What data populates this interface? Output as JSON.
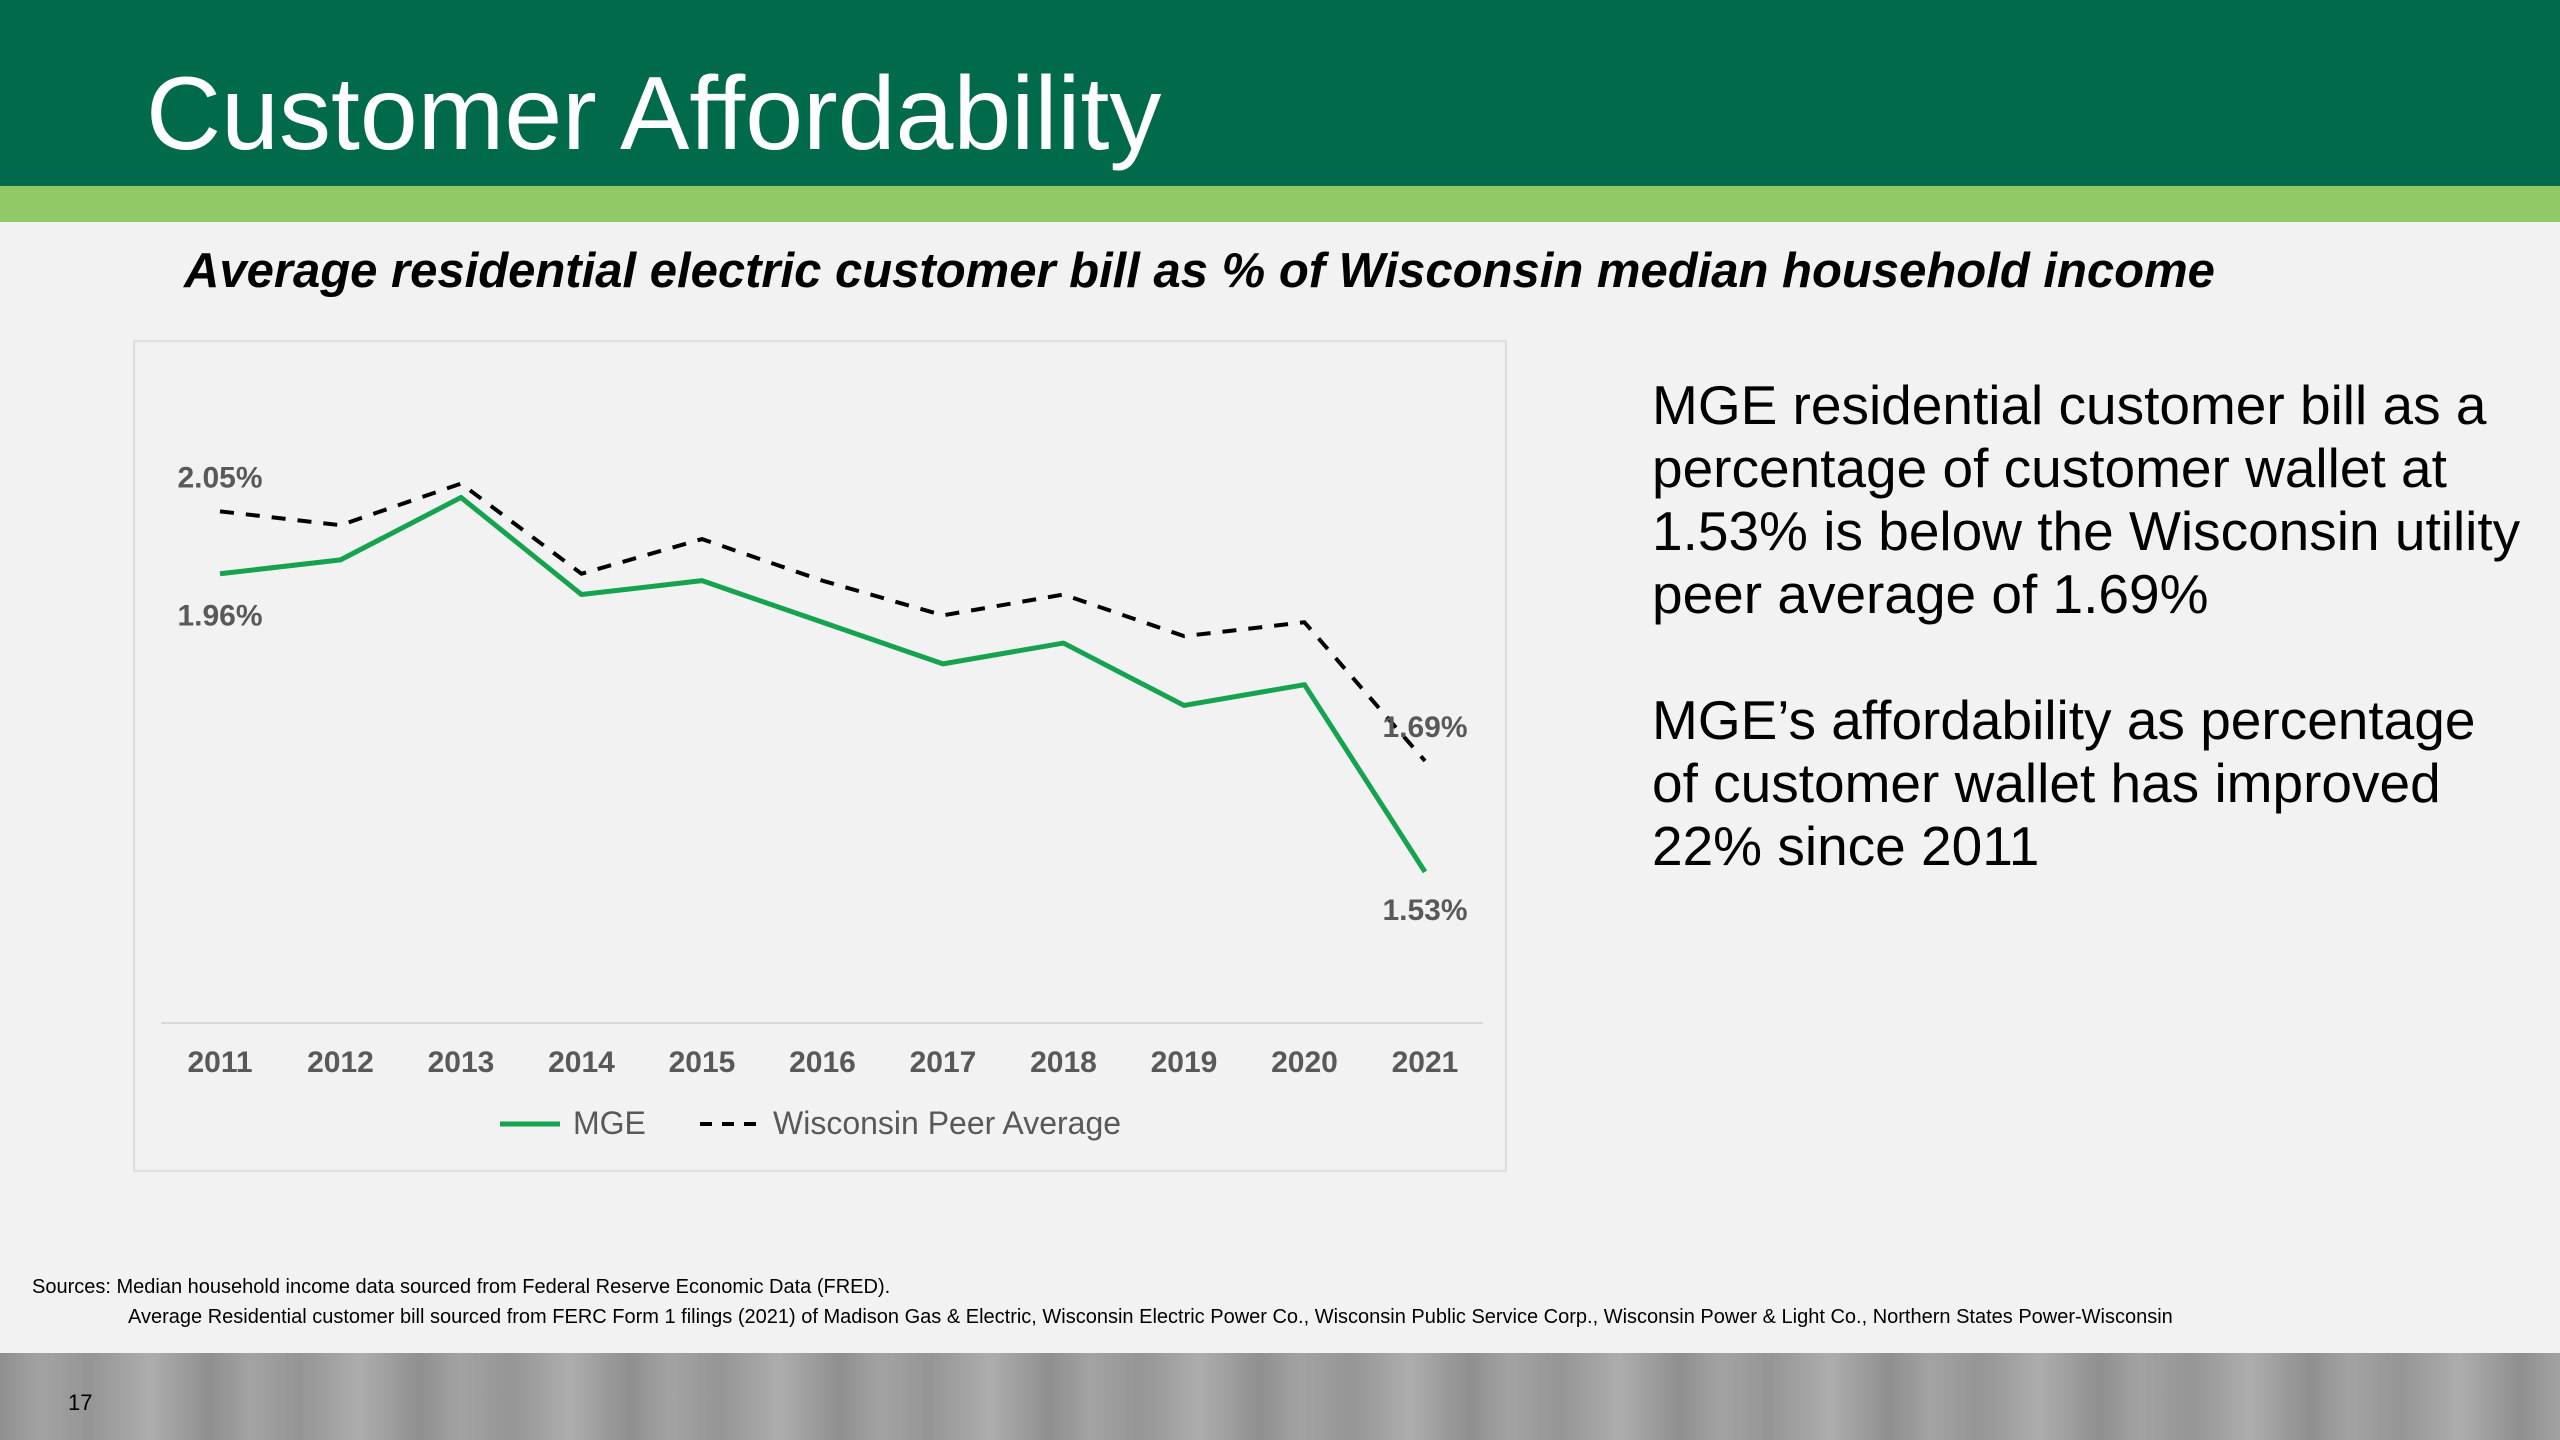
{
  "page": {
    "title": "Customer Affordability",
    "subtitle": "Average residential electric customer bill as % of Wisconsin median household income",
    "side_text": [
      "MGE residential customer bill as a percentage of customer wallet at 1.53% is below the Wisconsin utility peer average of 1.69%",
      "MGE’s affordability as percentage of customer wallet has improved 22% since 2011"
    ],
    "sources_line1": "Sources: Median household income data sourced from Federal Reserve Economic Data (FRED).",
    "sources_line2": "Average Residential customer bill sourced from FERC Form 1 filings (2021) of Madison Gas & Electric, Wisconsin Electric Power Co., Wisconsin Public Service Corp., Wisconsin Power & Light Co.,  Northern States Power-Wisconsin",
    "page_number": "17"
  },
  "colors": {
    "header": "#006a4a",
    "accent_bar": "#92c967",
    "mge_line": "#16a34f",
    "peer_line": "#000000",
    "label_text": "#595959"
  },
  "chart_data": {
    "type": "line",
    "categories": [
      "2011",
      "2012",
      "2013",
      "2014",
      "2015",
      "2016",
      "2017",
      "2018",
      "2019",
      "2020",
      "2021"
    ],
    "series": [
      {
        "name": "MGE",
        "style": "solid",
        "values": [
          1.96,
          1.98,
          2.07,
          1.93,
          1.95,
          1.89,
          1.83,
          1.86,
          1.77,
          1.8,
          1.53
        ]
      },
      {
        "name": "Wisconsin Peer Average",
        "style": "dashed",
        "values": [
          2.05,
          2.03,
          2.09,
          1.96,
          2.01,
          1.95,
          1.9,
          1.93,
          1.87,
          1.89,
          1.69
        ]
      }
    ],
    "data_labels": [
      {
        "series": "Wisconsin Peer Average",
        "index": 0,
        "text": "2.05%"
      },
      {
        "series": "MGE",
        "index": 0,
        "text": "1.96%"
      },
      {
        "series": "Wisconsin Peer Average",
        "index": 10,
        "text": "1.69%"
      },
      {
        "series": "MGE",
        "index": 10,
        "text": "1.53%"
      }
    ],
    "legend": "bottom",
    "grid": false,
    "y_axis_visible": false
  }
}
